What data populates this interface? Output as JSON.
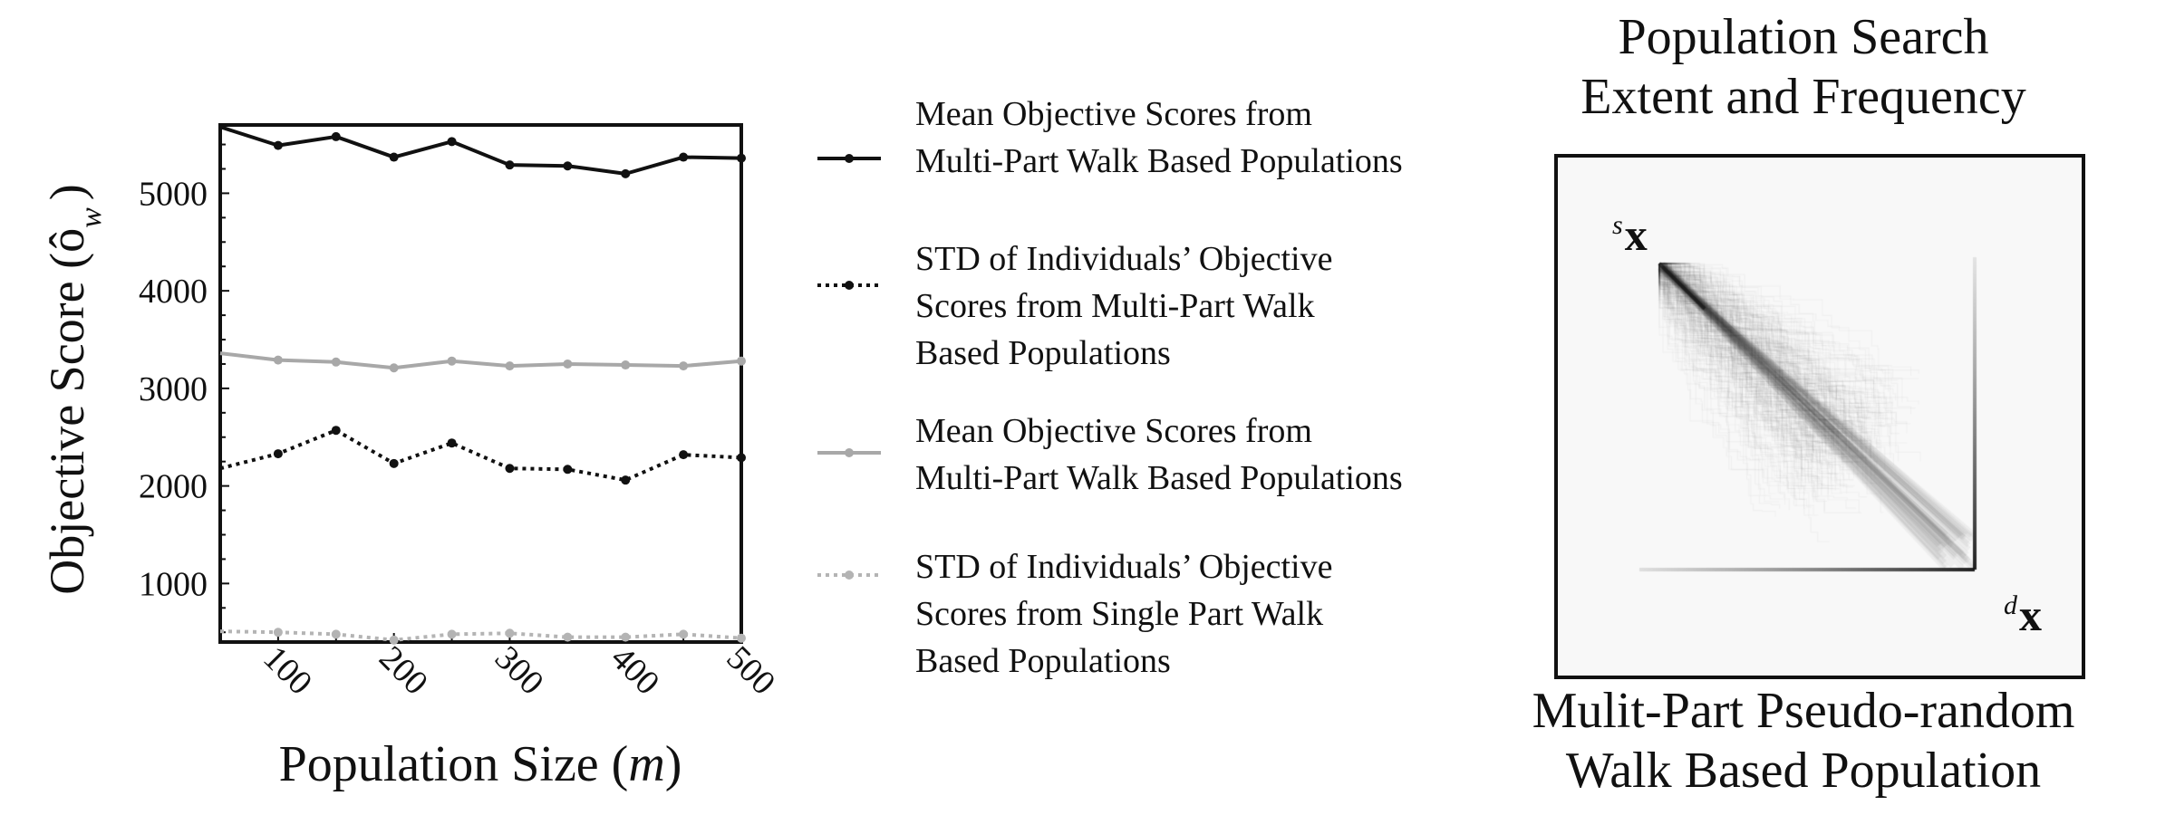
{
  "chart_data": {
    "type": "line",
    "ylabel": "Objective Score (ô",
    "ylabel_sub": "w",
    "ylabel_close": ")",
    "xlabel": "Population Size (",
    "xlabel_var": "m",
    "xlabel_close": ")",
    "x": [
      50,
      100,
      150,
      200,
      250,
      300,
      350,
      400,
      450,
      500
    ],
    "xlim": [
      50,
      500
    ],
    "ylim": [
      400,
      5700
    ],
    "xticks": [
      "100",
      "200",
      "300",
      "400",
      "500"
    ],
    "xtick_values": [
      100,
      200,
      300,
      400,
      500
    ],
    "yticks": [
      "1000",
      "2000",
      "3000",
      "4000",
      "5000"
    ],
    "ytick_values": [
      1000,
      2000,
      3000,
      4000,
      5000
    ],
    "grid": false,
    "series": [
      {
        "name": "Mean Objective Scores from Multi-Part Walk Based Populations",
        "color": "#111111",
        "style": "solid",
        "values": [
          5680,
          5490,
          5580,
          5370,
          5530,
          5290,
          5280,
          5200,
          5370,
          5360
        ]
      },
      {
        "name": "STD of Individuals’ Objective Scores from Multi-Part Walk Based Populations",
        "color": "#111111",
        "style": "dotted",
        "values": [
          2180,
          2330,
          2570,
          2230,
          2440,
          2180,
          2170,
          2060,
          2320,
          2290
        ]
      },
      {
        "name": "Mean Objective Scores from Multi-Part Walk Based Populations",
        "color": "#a8a8a8",
        "style": "solid",
        "values": [
          3360,
          3290,
          3270,
          3210,
          3280,
          3230,
          3250,
          3240,
          3230,
          3280
        ]
      },
      {
        "name": "STD of Individuals’ Objective Scores from Single Part Walk Based Populations",
        "color": "#b4b4b4",
        "style": "dotted",
        "values": [
          510,
          500,
          480,
          420,
          480,
          490,
          450,
          450,
          480,
          440
        ]
      }
    ]
  },
  "legend": {
    "items": [
      {
        "lines": [
          "Mean Objective Scores from",
          "Multi-Part Walk Based Populations"
        ]
      },
      {
        "lines": [
          "STD of Individuals’ Objective",
          "Scores from Multi-Part Walk",
          "Based  Populations"
        ]
      },
      {
        "lines": [
          "Mean Objective Scores from",
          "Multi-Part Walk Based Populations"
        ]
      },
      {
        "lines": [
          "STD of Individuals’ Objective",
          "Scores from Single Part Walk",
          "Based Populations"
        ]
      }
    ]
  },
  "heatmap_panel": {
    "title_lines": [
      "Population Search",
      "Extent and Frequency"
    ],
    "caption_lines": [
      "Mulit-Part Pseudo-random",
      "Walk Based Population"
    ],
    "start_label": {
      "sup": "s",
      "main": "x"
    },
    "end_label": {
      "sup": "d",
      "main": "x"
    }
  }
}
